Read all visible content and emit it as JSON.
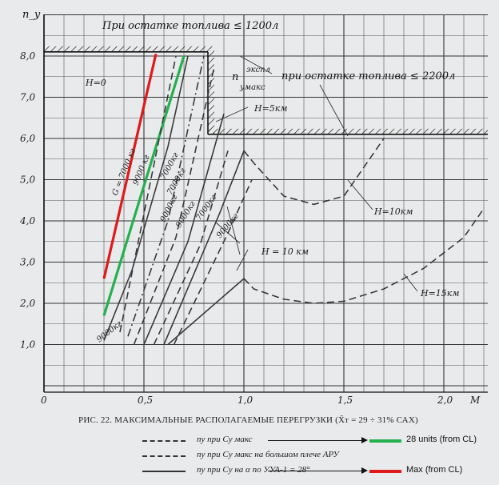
{
  "chart_data": {
    "type": "line",
    "ylabel": "n_y",
    "xlabel": "M",
    "xlim": [
      0,
      2.2
    ],
    "ylim": [
      0,
      9.0
    ],
    "x_ticks": [
      "0",
      "0,5",
      "1,0",
      "1,5",
      "2,0"
    ],
    "y_ticks": [
      "1,0",
      "2,0",
      "3,0",
      "4,0",
      "5,0",
      "6,0",
      "7,0",
      "8,0"
    ],
    "grid": true,
    "annotations": {
      "top_limit": "При остатке топлива ≤ 1200л",
      "n_label": "n",
      "n_sup": "экспл",
      "n_sub": "умакс",
      "mid_limit": "при остатке топлива ≤ 2200л",
      "h0": "H=0",
      "h5": "H=5км",
      "h10a": "H=10км",
      "h10b": "H = 10 км",
      "h15": "H=15км",
      "g7000": "G = 7000 кг",
      "g9000a": "9000 кг",
      "g7000b": "7000кг",
      "g7000c": "7000кг",
      "g9000b": "9000кг",
      "g9000c": "9000кг",
      "g7000d": "7000кг",
      "g9000d": "9000кг",
      "g9000e": "9000кг"
    },
    "limits": {
      "n_max_1200": 8.1,
      "mach_wall_1200": 0.82,
      "n_max_2200": 6.1,
      "mach_start_2200": 0.82
    },
    "series": [
      {
        "name": "Max (from CL)",
        "color": "#e0191c",
        "style": "solid",
        "x": [
          0.3,
          0.56
        ],
        "y": [
          2.6,
          8.05
        ]
      },
      {
        "name": "28 units (from CL)",
        "color": "#23b14d",
        "style": "solid",
        "x": [
          0.3,
          0.7
        ],
        "y": [
          1.7,
          8.0
        ]
      },
      {
        "style": "dash",
        "x": [
          0.38,
          0.66
        ],
        "y": [
          1.3,
          8.0
        ]
      },
      {
        "style": "solid",
        "x": [
          0.3,
          0.44,
          0.62,
          0.72
        ],
        "y": [
          1.1,
          2.8,
          5.8,
          8.0
        ]
      },
      {
        "style": "dashdot",
        "x": [
          0.42,
          0.62,
          0.8
        ],
        "y": [
          1.2,
          4.0,
          8.0
        ]
      },
      {
        "style": "dash",
        "x": [
          0.45,
          0.66,
          0.85
        ],
        "y": [
          1.0,
          3.6,
          7.7
        ]
      },
      {
        "style": "solid",
        "x": [
          0.5,
          0.72,
          0.9
        ],
        "y": [
          1.0,
          3.5,
          6.6
        ]
      },
      {
        "style": "dash",
        "x": [
          0.55,
          0.78,
          0.92
        ],
        "y": [
          1.0,
          3.4,
          5.7
        ]
      },
      {
        "style": "solid",
        "x": [
          0.6,
          0.88,
          1.0
        ],
        "y": [
          1.0,
          4.2,
          5.7
        ]
      },
      {
        "style": "dash",
        "x": [
          0.65,
          0.92,
          1.04
        ],
        "y": [
          1.0,
          3.7,
          5.0
        ]
      },
      {
        "style": "solid",
        "x": [
          0.62,
          1.0
        ],
        "y": [
          1.0,
          2.6
        ]
      },
      {
        "style": "dash",
        "x": [
          1.0,
          1.05,
          1.2,
          1.35,
          1.5,
          1.7
        ],
        "y": [
          5.7,
          5.4,
          4.6,
          4.4,
          4.6,
          6.0
        ]
      },
      {
        "style": "dash",
        "x": [
          1.0,
          1.05,
          1.2,
          1.35,
          1.5,
          1.7,
          1.9,
          2.1,
          2.2
        ],
        "y": [
          2.6,
          2.35,
          2.1,
          2.0,
          2.05,
          2.35,
          2.85,
          3.6,
          4.3
        ]
      }
    ]
  },
  "caption": "РИС. 22. МАКСИМАЛЬНЫЕ РАСПОЛАГАЕМЫЕ ПЕРЕГРУЗКИ (X̄т = 29 ÷ 31% САХ)",
  "legend": [
    {
      "text": "nу при Cу макс",
      "callout": "28 units (from CL)",
      "color": "#23b14d"
    },
    {
      "text": "nу при Cу макс на большом плече АРУ",
      "callout": "",
      "color": ""
    },
    {
      "text": "nу при Cу на α по УУА-1 = 28°",
      "callout": "Max (from CL)",
      "color": "#e0191c"
    }
  ]
}
